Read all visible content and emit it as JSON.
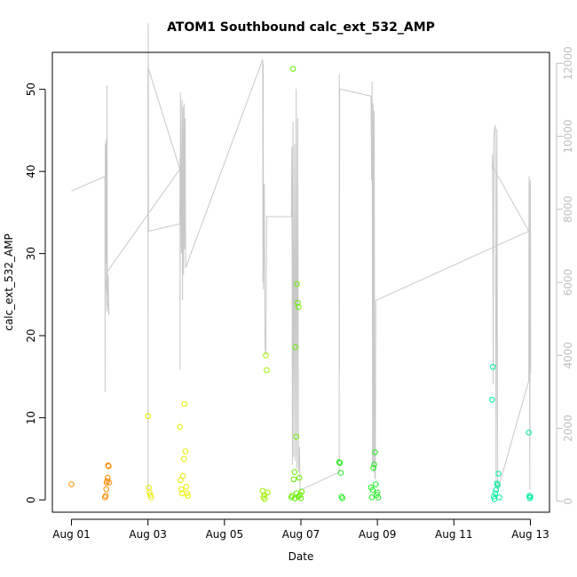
{
  "chart_data": {
    "type": "scatter",
    "title": "ATOM1 Southbound calc_ext_532_AMP",
    "xlabel": "Date",
    "ylabel": "calc_ext_532_AMP",
    "x_unit": "days",
    "xlim": [
      "2016-07-31T12:00",
      "2016-08-13T12:00"
    ],
    "ylim": [
      -1.5,
      54.5
    ],
    "y2lim": [
      -300,
      12300
    ],
    "x_ticks": [
      "Aug 01",
      "Aug 03",
      "Aug 05",
      "Aug 07",
      "Aug 09",
      "Aug 11",
      "Aug 13"
    ],
    "x_tick_dates": [
      "2016-08-01",
      "2016-08-03",
      "2016-08-05",
      "2016-08-07",
      "2016-08-09",
      "2016-08-11",
      "2016-08-13"
    ],
    "y_ticks": [
      0,
      10,
      20,
      30,
      40,
      50
    ],
    "y2_ticks": [
      0,
      2000,
      4000,
      6000,
      8000,
      10000,
      12000
    ],
    "grid": false,
    "colors": {
      "background": "#ffffff",
      "axis": "#000000",
      "secondary_line": "#c8c8c8",
      "secondary_axis": "#bfbfbf"
    },
    "series": [
      {
        "color": "#ff8c00",
        "points": [
          [
            "2016-08-01T00:00",
            1.9
          ],
          [
            "2016-08-01T21:00",
            0.3
          ],
          [
            "2016-08-01T21:30",
            0.5
          ],
          [
            "2016-08-01T21:50",
            1.3
          ],
          [
            "2016-08-01T22:00",
            2.1
          ],
          [
            "2016-08-01T22:20",
            2.3
          ],
          [
            "2016-08-01T22:40",
            2.7
          ],
          [
            "2016-08-01T23:00",
            4.2
          ],
          [
            "2016-08-01T23:20",
            4.1
          ],
          [
            "2016-08-01T23:40",
            2.1
          ]
        ]
      },
      {
        "color": "#e6ee00",
        "points": [
          [
            "2016-08-03T00:00",
            10.2
          ],
          [
            "2016-08-03T00:30",
            1.5
          ],
          [
            "2016-08-03T01:00",
            0.9
          ],
          [
            "2016-08-03T01:30",
            0.6
          ],
          [
            "2016-08-03T02:00",
            0.3
          ],
          [
            "2016-08-03T20:00",
            8.9
          ],
          [
            "2016-08-03T20:30",
            2.4
          ],
          [
            "2016-08-03T21:00",
            1.3
          ],
          [
            "2016-08-03T21:30",
            0.8
          ],
          [
            "2016-08-03T22:00",
            2.9
          ],
          [
            "2016-08-03T22:30",
            5.0
          ],
          [
            "2016-08-03T23:00",
            11.7
          ],
          [
            "2016-08-03T23:30",
            5.9
          ],
          [
            "2016-08-04T00:00",
            1.6
          ],
          [
            "2016-08-04T00:30",
            0.8
          ],
          [
            "2016-08-04T01:00",
            0.5
          ]
        ]
      },
      {
        "color": "#9ff000",
        "points": [
          [
            "2016-08-06T00:00",
            1.1
          ],
          [
            "2016-08-06T00:30",
            0.3
          ],
          [
            "2016-08-06T01:00",
            0.6
          ],
          [
            "2016-08-06T01:20",
            0.1
          ],
          [
            "2016-08-06T02:00",
            17.6
          ],
          [
            "2016-08-06T02:30",
            15.8
          ],
          [
            "2016-08-06T03:00",
            0.9
          ]
        ]
      },
      {
        "color": "#66ee00",
        "points": [
          [
            "2016-08-06T19:00",
            52.5
          ],
          [
            "2016-08-06T19:30",
            2.5
          ],
          [
            "2016-08-06T20:00",
            3.4
          ],
          [
            "2016-08-06T20:30",
            18.6
          ],
          [
            "2016-08-06T21:00",
            7.7
          ],
          [
            "2016-08-06T21:30",
            26.3
          ],
          [
            "2016-08-06T22:00",
            24.0
          ],
          [
            "2016-08-06T22:30",
            23.5
          ],
          [
            "2016-08-06T23:00",
            2.7
          ],
          [
            "2016-08-06T18:00",
            0.3
          ],
          [
            "2016-08-06T18:30",
            0.5
          ],
          [
            "2016-08-06T20:15",
            0.2
          ],
          [
            "2016-08-06T21:15",
            0.8
          ],
          [
            "2016-08-06T22:15",
            0.4
          ],
          [
            "2016-08-06T23:30",
            0.6
          ],
          [
            "2016-08-07T00:00",
            0.2
          ],
          [
            "2016-08-07T00:30",
            1.0
          ]
        ]
      },
      {
        "color": "#22ee22",
        "points": [
          [
            "2016-08-08T00:00",
            4.6
          ],
          [
            "2016-08-08T00:30",
            4.5
          ],
          [
            "2016-08-08T01:00",
            3.3
          ],
          [
            "2016-08-08T01:30",
            0.4
          ],
          [
            "2016-08-08T02:00",
            0.2
          ],
          [
            "2016-08-08T20:00",
            1.5
          ],
          [
            "2016-08-08T20:30",
            0.3
          ],
          [
            "2016-08-08T21:00",
            1.2
          ],
          [
            "2016-08-08T21:30",
            3.9
          ],
          [
            "2016-08-08T22:00",
            4.3
          ],
          [
            "2016-08-08T22:30",
            5.8
          ],
          [
            "2016-08-08T23:00",
            1.9
          ],
          [
            "2016-08-08T23:30",
            0.6
          ],
          [
            "2016-08-09T00:00",
            0.9
          ],
          [
            "2016-08-09T00:30",
            0.3
          ]
        ]
      },
      {
        "color": "#00ee99",
        "points": [
          [
            "2016-08-12T00:00",
            12.2
          ],
          [
            "2016-08-12T00:30",
            16.2
          ],
          [
            "2016-08-12T01:00",
            0.4
          ],
          [
            "2016-08-12T01:30",
            0.1
          ],
          [
            "2016-08-12T02:00",
            0.8
          ],
          [
            "2016-08-12T02:30",
            1.2
          ],
          [
            "2016-08-12T03:00",
            2.0
          ],
          [
            "2016-08-12T03:30",
            1.8
          ],
          [
            "2016-08-12T04:00",
            3.2
          ],
          [
            "2016-08-12T04:30",
            0.3
          ],
          [
            "2016-08-12T23:00",
            8.2
          ],
          [
            "2016-08-12T23:20",
            0.5
          ],
          [
            "2016-08-12T23:40",
            0.2
          ],
          [
            "2016-08-13T00:00",
            0.4
          ]
        ]
      }
    ],
    "secondary_line": {
      "color": "#c8c8c8",
      "axis": "right",
      "points": [
        [
          "2016-08-01T00:00",
          8500
        ],
        [
          "2016-08-01T21:00",
          8900
        ],
        [
          "2016-08-01T21:05",
          3000
        ],
        [
          "2016-08-01T21:10",
          9300
        ],
        [
          "2016-08-01T21:15",
          9800
        ],
        [
          "2016-08-01T21:20",
          6500
        ],
        [
          "2016-08-01T21:40",
          9900
        ],
        [
          "2016-08-01T22:00",
          5900
        ],
        [
          "2016-08-01T22:10",
          5200
        ],
        [
          "2016-08-01T22:20",
          11400
        ],
        [
          "2016-08-01T22:30",
          5500
        ],
        [
          "2016-08-01T23:00",
          6200
        ],
        [
          "2016-08-01T23:30",
          5100
        ],
        [
          "2016-08-01T21:00",
          6200
        ],
        [
          "2016-08-03T20:00",
          9100
        ],
        [
          "2016-08-03T00:00",
          11900
        ],
        [
          "2016-08-03T00:05",
          300
        ],
        [
          "2016-08-03T00:10",
          13100
        ],
        [
          "2016-08-03T00:15",
          11700
        ],
        [
          "2016-08-03T00:20",
          7400
        ],
        [
          "2016-08-03T20:00",
          7600
        ],
        [
          "2016-08-03T20:05",
          9400
        ],
        [
          "2016-08-03T20:10",
          3600
        ],
        [
          "2016-08-03T20:20",
          11200
        ],
        [
          "2016-08-03T21:00",
          6800
        ],
        [
          "2016-08-03T21:20",
          11000
        ],
        [
          "2016-08-03T21:40",
          5500
        ],
        [
          "2016-08-03T22:00",
          10800
        ],
        [
          "2016-08-03T22:20",
          6200
        ],
        [
          "2016-08-03T22:40",
          10900
        ],
        [
          "2016-08-03T23:00",
          6900
        ],
        [
          "2016-08-03T23:20",
          10500
        ],
        [
          "2016-08-03T23:40",
          6400
        ],
        [
          "2016-08-06T00:00",
          12100
        ],
        [
          "2016-08-06T00:10",
          6000
        ],
        [
          "2016-08-06T00:20",
          12000
        ],
        [
          "2016-08-06T00:30",
          5800
        ],
        [
          "2016-08-06T01:00",
          8700
        ],
        [
          "2016-08-06T01:30",
          4200
        ],
        [
          "2016-08-06T02:00",
          4000
        ],
        [
          "2016-08-06T02:30",
          7800
        ],
        [
          "2016-08-06T18:00",
          7800
        ],
        [
          "2016-08-06T18:20",
          9700
        ],
        [
          "2016-08-06T18:40",
          1000
        ],
        [
          "2016-08-06T19:00",
          10400
        ],
        [
          "2016-08-06T19:30",
          1200
        ],
        [
          "2016-08-06T20:00",
          9800
        ],
        [
          "2016-08-06T20:30",
          1100
        ],
        [
          "2016-08-06T21:00",
          11300
        ],
        [
          "2016-08-06T21:30",
          900
        ],
        [
          "2016-08-06T22:00",
          10500
        ],
        [
          "2016-08-06T22:30",
          800
        ],
        [
          "2016-08-06T23:00",
          1500
        ],
        [
          "2016-08-06T23:30",
          300
        ],
        [
          "2016-08-08T00:00",
          800
        ],
        [
          "2016-08-08T00:05",
          11700
        ],
        [
          "2016-08-08T00:10",
          3600
        ],
        [
          "2016-08-08T00:20",
          11300
        ],
        [
          "2016-08-08T20:00",
          11100
        ],
        [
          "2016-08-08T20:20",
          8800
        ],
        [
          "2016-08-08T20:40",
          11500
        ],
        [
          "2016-08-08T21:00",
          1000
        ],
        [
          "2016-08-08T21:20",
          10900
        ],
        [
          "2016-08-08T21:40",
          800
        ],
        [
          "2016-08-08T22:00",
          10700
        ],
        [
          "2016-08-08T22:20",
          700
        ],
        [
          "2016-08-08T22:40",
          600
        ],
        [
          "2016-08-08T23:00",
          5500
        ],
        [
          "2016-08-12T23:00",
          7400
        ],
        [
          "2016-08-12T00:00",
          9200
        ],
        [
          "2016-08-12T00:05",
          9100
        ],
        [
          "2016-08-12T00:20",
          9500
        ],
        [
          "2016-08-12T00:40",
          3200
        ],
        [
          "2016-08-12T01:00",
          9900
        ],
        [
          "2016-08-12T01:30",
          10200
        ],
        [
          "2016-08-12T02:00",
          10300
        ],
        [
          "2016-08-12T02:30",
          400
        ],
        [
          "2016-08-12T03:00",
          10200
        ],
        [
          "2016-08-12T03:30",
          300
        ],
        [
          "2016-08-12T23:00",
          3300
        ],
        [
          "2016-08-12T23:10",
          8900
        ],
        [
          "2016-08-12T23:20",
          8700
        ],
        [
          "2016-08-12T23:40",
          300
        ],
        [
          "2016-08-13T00:00",
          8800
        ],
        [
          "2016-08-13T00:10",
          3500
        ]
      ]
    }
  }
}
